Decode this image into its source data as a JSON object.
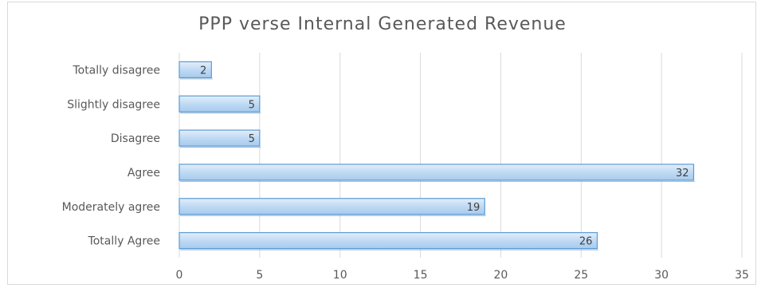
{
  "chart_data": {
    "type": "bar",
    "orientation": "horizontal",
    "title": "PPP verse Internal Generated Revenue",
    "categories": [
      "Totally disagree",
      "Slightly disagree",
      "Disagree",
      "Agree",
      "Moderately agree",
      "Totally Agree"
    ],
    "values": [
      2,
      5,
      5,
      32,
      19,
      26
    ],
    "xlim": [
      0,
      35
    ],
    "xticks": [
      0,
      5,
      10,
      15,
      20,
      25,
      30,
      35
    ],
    "grid": true,
    "data_labels": true,
    "bar_color": "#bcd8f3",
    "bar_edge_color": "#5b9bd5"
  }
}
